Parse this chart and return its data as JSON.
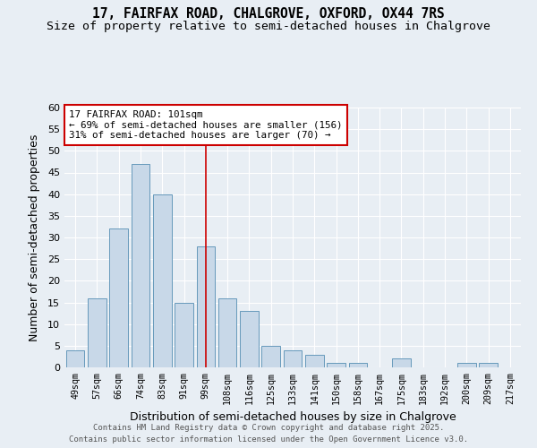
{
  "title_line1": "17, FAIRFAX ROAD, CHALGROVE, OXFORD, OX44 7RS",
  "title_line2": "Size of property relative to semi-detached houses in Chalgrove",
  "xlabel": "Distribution of semi-detached houses by size in Chalgrove",
  "ylabel": "Number of semi-detached properties",
  "footnote1": "Contains HM Land Registry data © Crown copyright and database right 2025.",
  "footnote2": "Contains public sector information licensed under the Open Government Licence v3.0.",
  "bins": [
    "49sqm",
    "57sqm",
    "66sqm",
    "74sqm",
    "83sqm",
    "91sqm",
    "99sqm",
    "108sqm",
    "116sqm",
    "125sqm",
    "133sqm",
    "141sqm",
    "150sqm",
    "158sqm",
    "167sqm",
    "175sqm",
    "183sqm",
    "192sqm",
    "200sqm",
    "209sqm",
    "217sqm"
  ],
  "values": [
    4,
    16,
    32,
    47,
    40,
    15,
    28,
    16,
    13,
    5,
    4,
    3,
    1,
    1,
    0,
    2,
    0,
    0,
    1,
    1,
    0
  ],
  "bar_color": "#c8d8e8",
  "bar_edge_color": "#6699bb",
  "vline_bin": "99sqm",
  "vline_color": "#cc0000",
  "annotation_text": "17 FAIRFAX ROAD: 101sqm\n← 69% of semi-detached houses are smaller (156)\n31% of semi-detached houses are larger (70) →",
  "annotation_box_color": "#ffffff",
  "annotation_box_edge_color": "#cc0000",
  "ylim": [
    0,
    60
  ],
  "yticks": [
    0,
    5,
    10,
    15,
    20,
    25,
    30,
    35,
    40,
    45,
    50,
    55,
    60
  ],
  "bg_color": "#e8eef4",
  "grid_color": "#ffffff",
  "title_fontsize": 10.5,
  "subtitle_fontsize": 9.5
}
